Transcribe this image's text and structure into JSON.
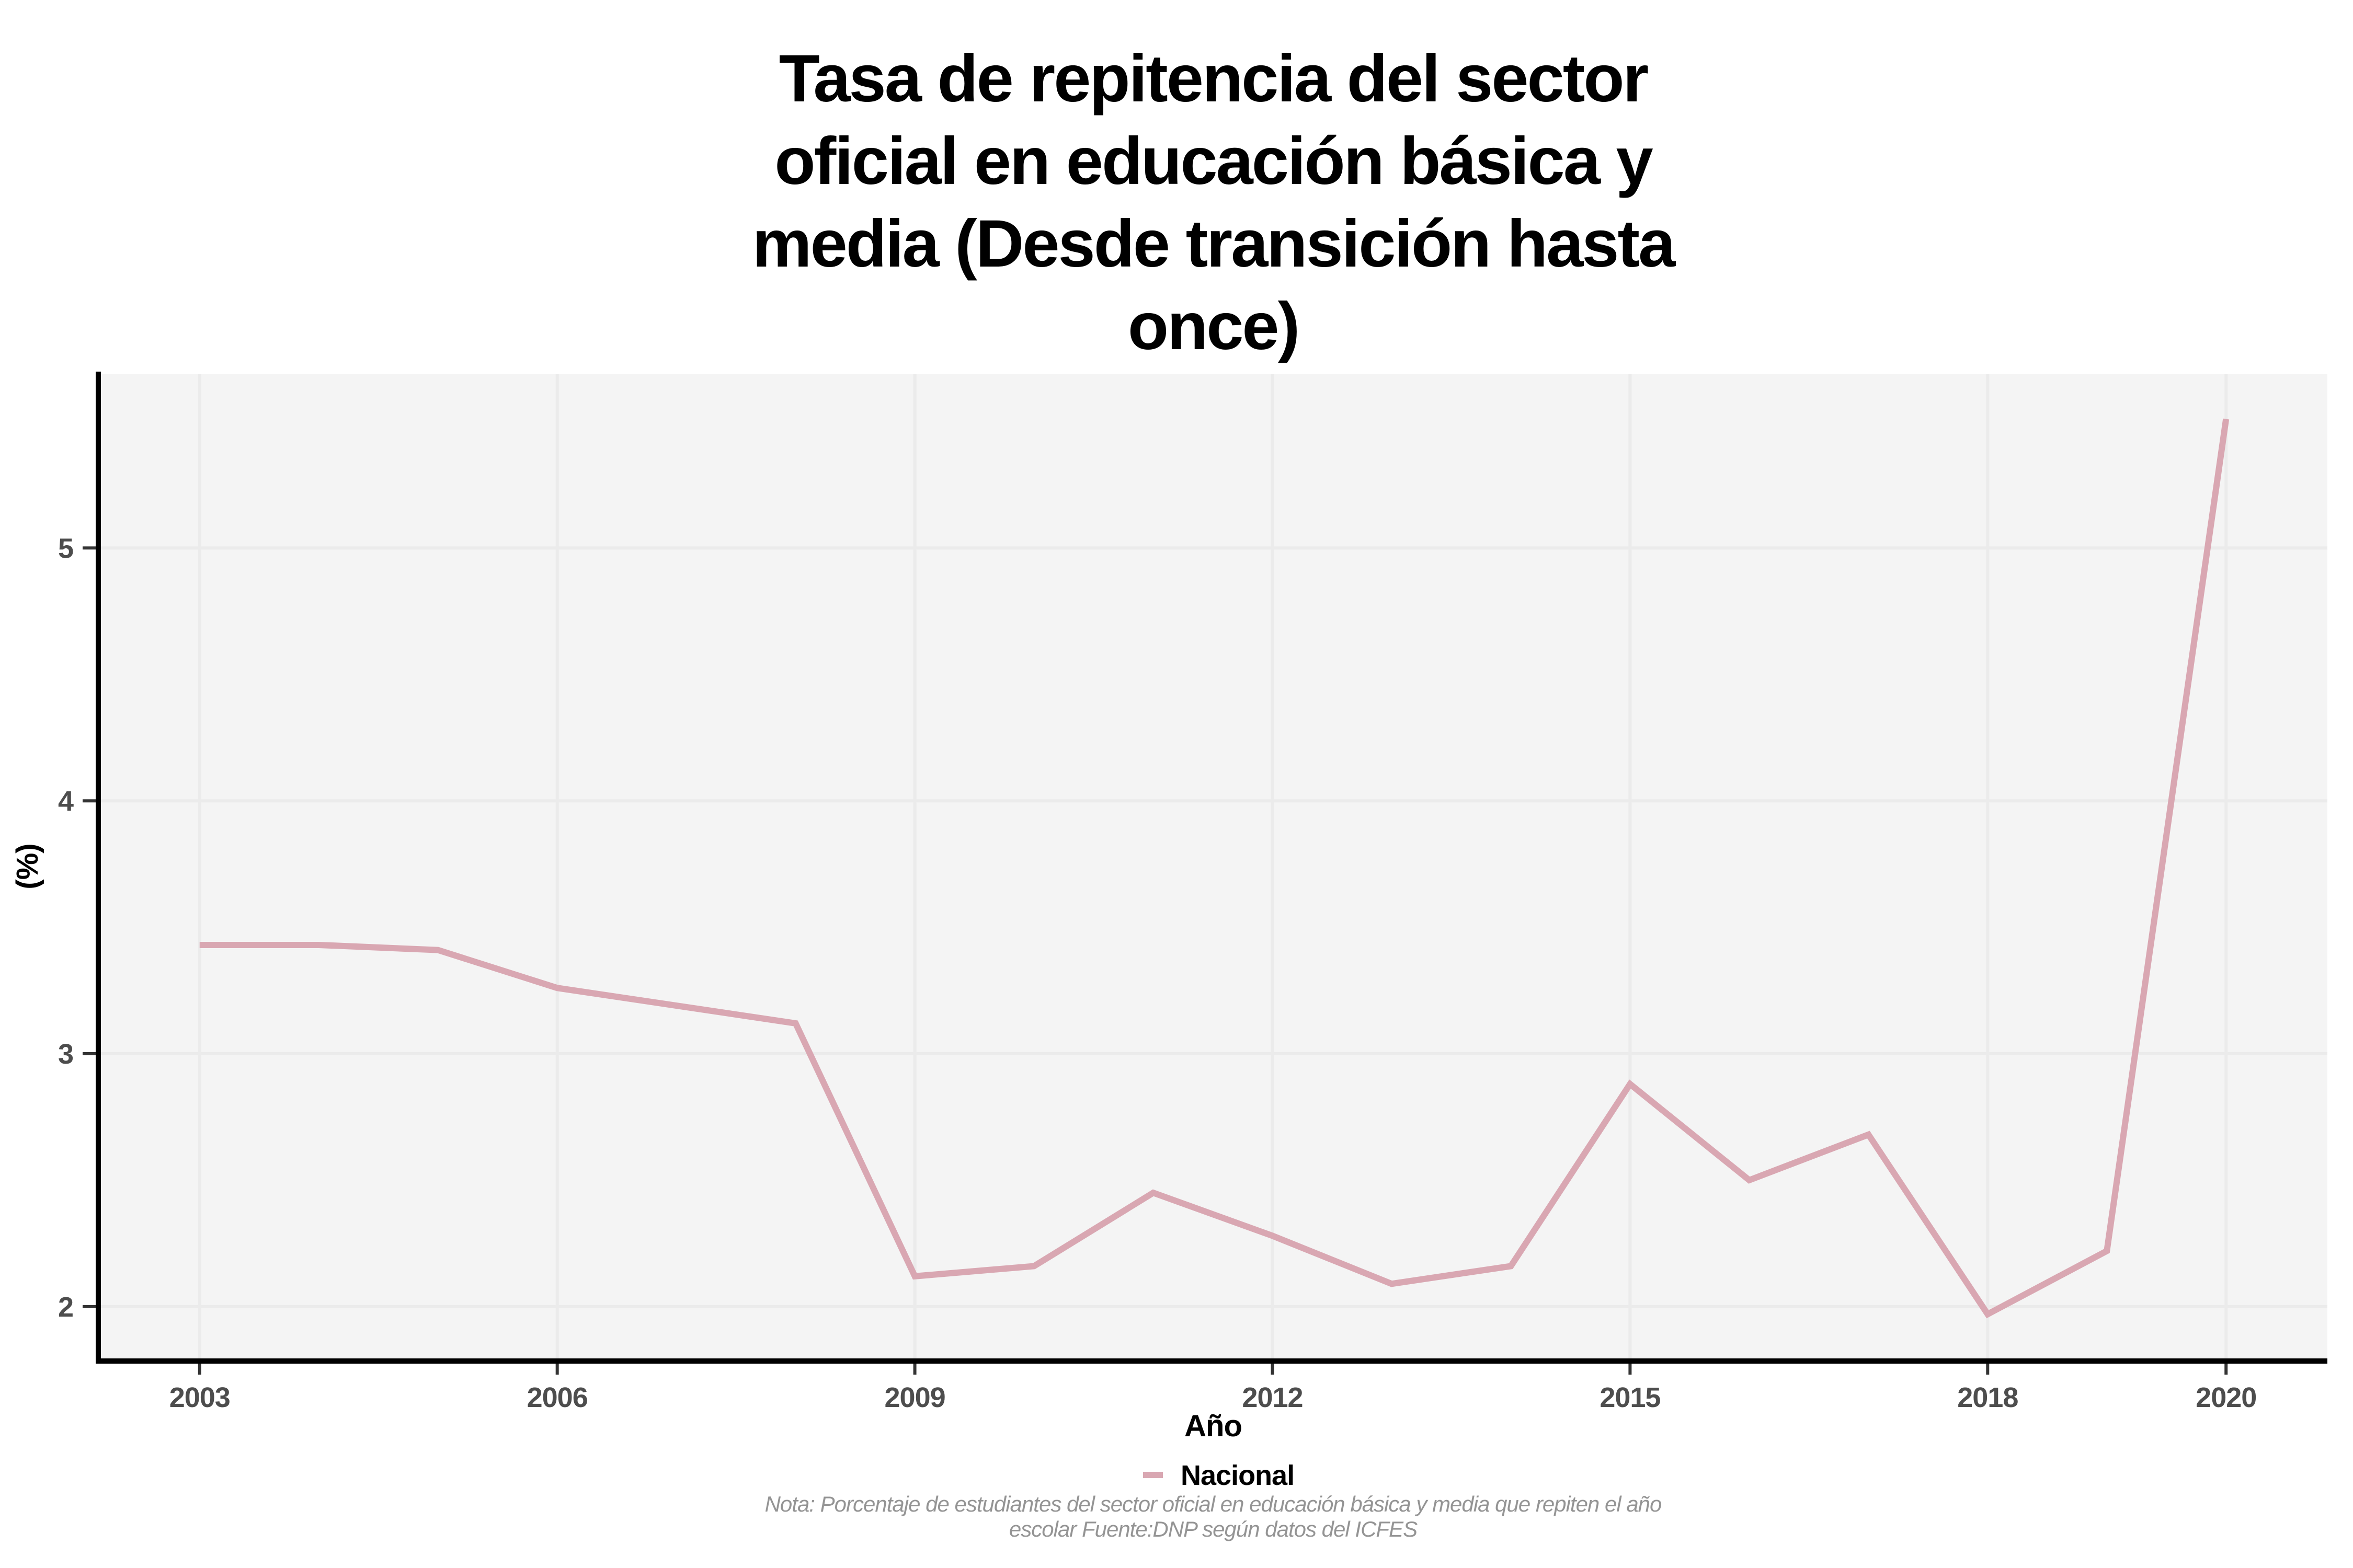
{
  "title": {
    "lines": [
      "Tasa de repitencia del sector",
      "oficial en educación básica y",
      "media (Desde transición hasta",
      "once)"
    ]
  },
  "axes": {
    "x_label": "Año",
    "y_label": "(%)"
  },
  "legend": {
    "label": "Nacional"
  },
  "note": {
    "lines": [
      "Nota: Porcentaje de estudiantes del sector oficial en educación básica y media que repiten el año",
      "escolar Fuente:DNP según datos del ICFES"
    ]
  },
  "colors": {
    "line": "#d9a7b2",
    "panel_bg": "#f4f4f4",
    "grid": "#ebebeb",
    "axis_line": "#000000",
    "tick_mark": "#333333",
    "tick_label": "#4d4d4d",
    "note_text": "#949494"
  },
  "chart_data": {
    "type": "line",
    "title": "Tasa de repitencia del sector oficial en educación básica y media (Desde transición hasta once)",
    "xlabel": "Año",
    "ylabel": "(%)",
    "x": [
      2003,
      2004,
      2005,
      2006,
      2007,
      2008,
      2009,
      2010,
      2011,
      2012,
      2013,
      2014,
      2015,
      2016,
      2017,
      2018,
      2019,
      2020
    ],
    "series": [
      {
        "name": "Nacional",
        "values": [
          3.43,
          3.43,
          3.41,
          3.26,
          3.19,
          3.12,
          2.12,
          2.16,
          2.45,
          2.28,
          2.09,
          2.16,
          2.88,
          2.5,
          2.68,
          1.97,
          2.22,
          5.51
        ]
      }
    ],
    "x_ticks": [
      2003,
      2006,
      2009,
      2012,
      2015,
      2018,
      2020
    ],
    "y_ticks": [
      2,
      3,
      4,
      5
    ],
    "xlim": [
      2002.15,
      2020.85
    ],
    "ylim": [
      1.793,
      5.687
    ],
    "grid": true,
    "legend_position": "bottom"
  }
}
